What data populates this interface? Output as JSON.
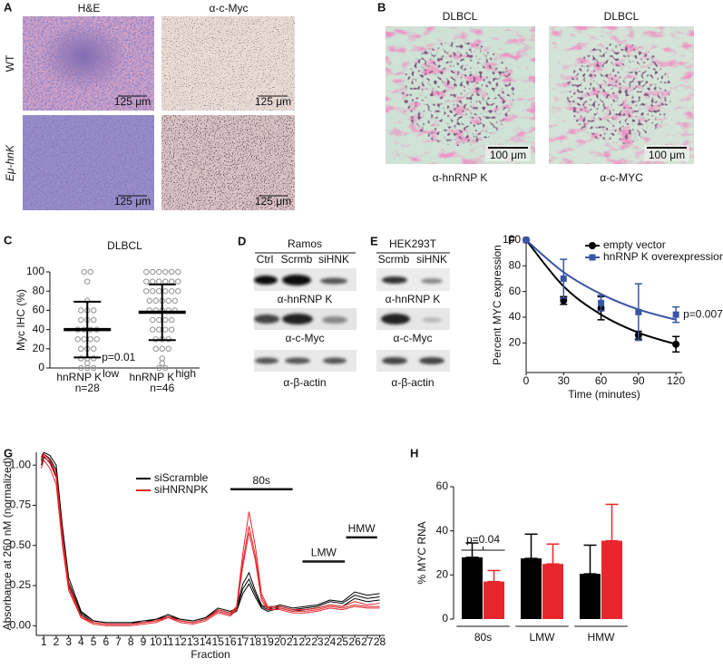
{
  "panel_a": {
    "letter": "A",
    "column_titles": [
      "H&E",
      "α-c-Myc"
    ],
    "row_labels": [
      "WT",
      "Eμ-hnK"
    ],
    "scale_bar": "125 μm"
  },
  "panel_b": {
    "letter": "B",
    "titles": [
      "DLBCL",
      "DLBCL"
    ],
    "captions": [
      "α-hnRNP K",
      "α-c-MYC"
    ],
    "scale_bar": "100 μm"
  },
  "panel_d": {
    "letter": "D",
    "cell_line": "Ramos",
    "lanes": [
      "Ctrl",
      "Scrmb",
      "siHNK"
    ],
    "blots": [
      "α-hnRNP K",
      "α-c-Myc",
      "α-β-actin"
    ]
  },
  "panel_e": {
    "letter": "E",
    "cell_line": "HEK293T",
    "lanes": [
      "Scrmb",
      "siHNK"
    ],
    "blots": [
      "α-hnRNP K",
      "α-c-Myc",
      "α-β-actin"
    ]
  },
  "chart_data": [
    {
      "letter": "C",
      "type": "dot",
      "title": "DLBCL",
      "y_label": "Myc IHC (%)",
      "categories": [
        "hnRNP K",
        "hnRNP K"
      ],
      "category_superscripts": [
        "low",
        "high"
      ],
      "category_notes": [
        "n=28",
        "n=46"
      ],
      "annotation": "p=0.01",
      "ylim": [
        0,
        100
      ],
      "yticks": [
        0,
        20,
        40,
        60,
        80,
        100
      ],
      "points": [
        [
          100,
          100,
          90,
          70,
          60,
          60,
          60,
          50,
          50,
          50,
          40,
          40,
          40,
          40,
          30,
          30,
          30,
          30,
          20,
          20,
          20,
          10,
          10,
          10,
          5,
          0,
          0,
          0
        ],
        [
          100,
          100,
          100,
          100,
          100,
          100,
          90,
          90,
          90,
          90,
          90,
          90,
          80,
          80,
          80,
          80,
          80,
          80,
          70,
          70,
          70,
          70,
          70,
          60,
          60,
          60,
          60,
          60,
          50,
          50,
          50,
          50,
          40,
          40,
          40,
          40,
          30,
          30,
          30,
          20,
          20,
          20,
          10,
          5,
          0,
          0
        ]
      ],
      "means": [
        40,
        58
      ],
      "errors": [
        29,
        29
      ],
      "point_color": "#9a9a9a",
      "mean_color": "#000000"
    },
    {
      "letter": "F",
      "type": "line",
      "x_label": "Time (minutes)",
      "y_label": "Percent MYC expression",
      "x": [
        0,
        30,
        60,
        90,
        120
      ],
      "xlim": [
        0,
        125
      ],
      "xticks": [
        0,
        30,
        60,
        90,
        120
      ],
      "ylim": [
        -3,
        102
      ],
      "yticks": [
        20,
        40,
        60,
        80,
        100
      ],
      "series": [
        {
          "name": "empty vector",
          "color": "#000000",
          "marker": "circle",
          "values": [
            100,
            53,
            47,
            26,
            19
          ],
          "errors": [
            0,
            3,
            9,
            3,
            6
          ],
          "fit": [
            100,
            64,
            42,
            28,
            19
          ]
        },
        {
          "name": "hnRNP K overexpression",
          "color": "#3a55a4",
          "marker": "square",
          "values": [
            100,
            70,
            51,
            44,
            42
          ],
          "errors": [
            0,
            15,
            6,
            22,
            6
          ],
          "fit": [
            100,
            75,
            58,
            46,
            38
          ]
        }
      ],
      "annotation": "p=0.007",
      "legend": "upper right"
    },
    {
      "letter": "G",
      "type": "line",
      "x_label": "Fraction",
      "y_label": "Absorbance at 260 nM (normalized)",
      "x": [
        0.8,
        1,
        1.5,
        2,
        2.5,
        3,
        4,
        5,
        6,
        7,
        8,
        9,
        10,
        11,
        12,
        13,
        14,
        15,
        16,
        16.5,
        17,
        17.5,
        18,
        18.5,
        19,
        20,
        21,
        22,
        23,
        24,
        25,
        26,
        27,
        28
      ],
      "xlim": [
        0.4,
        28.4
      ],
      "xticks": [
        1,
        2,
        3,
        4,
        5,
        6,
        7,
        8,
        9,
        10,
        11,
        12,
        13,
        14,
        15,
        16,
        17,
        18,
        19,
        20,
        21,
        22,
        23,
        24,
        25,
        26,
        27,
        28
      ],
      "ylim": [
        -0.06,
        1.08
      ],
      "yticks": [
        {
          "value": 0,
          "label": "0.00"
        },
        {
          "value": 0.25,
          "label": "0.25"
        },
        {
          "value": 0.5,
          "label": "0.50"
        },
        {
          "value": 0.75,
          "label": "0.75"
        },
        {
          "value": 1,
          "label": "1.00"
        }
      ],
      "series": [
        {
          "name": "siScramble",
          "color": "#000000",
          "traces": [
            [
              1.05,
              1.08,
              1.06,
              1.0,
              0.62,
              0.3,
              0.09,
              0.03,
              0.02,
              0.02,
              0.02,
              0.03,
              0.04,
              0.07,
              0.04,
              0.03,
              0.05,
              0.11,
              0.09,
              0.11,
              0.26,
              0.33,
              0.22,
              0.13,
              0.11,
              0.13,
              0.11,
              0.12,
              0.13,
              0.16,
              0.15,
              0.21,
              0.19,
              0.2
            ],
            [
              1.03,
              1.07,
              1.04,
              0.97,
              0.58,
              0.27,
              0.08,
              0.03,
              0.02,
              0.02,
              0.02,
              0.02,
              0.04,
              0.06,
              0.04,
              0.03,
              0.05,
              0.1,
              0.08,
              0.1,
              0.23,
              0.29,
              0.2,
              0.12,
              0.1,
              0.12,
              0.1,
              0.11,
              0.12,
              0.15,
              0.14,
              0.19,
              0.17,
              0.18
            ],
            [
              1.0,
              1.05,
              1.02,
              0.93,
              0.55,
              0.25,
              0.07,
              0.02,
              0.01,
              0.01,
              0.01,
              0.02,
              0.03,
              0.06,
              0.03,
              0.02,
              0.04,
              0.09,
              0.07,
              0.09,
              0.2,
              0.26,
              0.18,
              0.11,
              0.09,
              0.11,
              0.09,
              0.1,
              0.11,
              0.13,
              0.12,
              0.17,
              0.15,
              0.16
            ]
          ]
        },
        {
          "name": "siHNRNPK",
          "color": "#e8262d",
          "traces": [
            [
              1.04,
              1.07,
              1.03,
              0.95,
              0.57,
              0.26,
              0.06,
              0.02,
              0.01,
              0.01,
              0.01,
              0.02,
              0.03,
              0.06,
              0.03,
              0.02,
              0.04,
              0.1,
              0.08,
              0.12,
              0.45,
              0.71,
              0.5,
              0.2,
              0.12,
              0.12,
              0.1,
              0.1,
              0.11,
              0.13,
              0.12,
              0.15,
              0.13,
              0.14
            ],
            [
              1.02,
              1.06,
              1.01,
              0.92,
              0.53,
              0.24,
              0.05,
              0.02,
              0.01,
              0.01,
              0.01,
              0.02,
              0.03,
              0.05,
              0.03,
              0.02,
              0.04,
              0.09,
              0.07,
              0.11,
              0.4,
              0.62,
              0.44,
              0.18,
              0.11,
              0.11,
              0.09,
              0.09,
              0.1,
              0.12,
              0.11,
              0.13,
              0.12,
              0.12
            ],
            [
              0.98,
              1.03,
              0.98,
              0.88,
              0.5,
              0.22,
              0.05,
              0.01,
              0,
              0,
              0,
              0.01,
              0.02,
              0.05,
              0.02,
              0.01,
              0.03,
              0.08,
              0.06,
              0.1,
              0.37,
              0.58,
              0.41,
              0.16,
              0.1,
              0.1,
              0.08,
              0.08,
              0.09,
              0.11,
              0.1,
              0.12,
              0.11,
              0.11
            ]
          ]
        }
      ],
      "regions": [
        {
          "label": "80s",
          "range": [
            16,
            21
          ],
          "level": 0.85
        },
        {
          "label": "LMW",
          "range": [
            21.8,
            25.2
          ],
          "level": 0.4
        },
        {
          "label": "HMW",
          "range": [
            25.3,
            27.8
          ],
          "level": 0.55
        }
      ]
    },
    {
      "letter": "H",
      "type": "bar",
      "y_label": "% MYC RNA",
      "categories": [
        "80s",
        "LMW",
        "HMW"
      ],
      "ylim": [
        0,
        60
      ],
      "yticks": [
        0,
        20,
        40,
        60
      ],
      "series": [
        {
          "color": "#000000",
          "values": [
            28,
            27.5,
            20.5
          ],
          "errors": [
            6.5,
            11,
            13
          ]
        },
        {
          "color": "#e8262d",
          "values": [
            17,
            25,
            35.5
          ],
          "errors": [
            5,
            9,
            16.5
          ]
        }
      ],
      "annotation": "p=0.04"
    }
  ]
}
